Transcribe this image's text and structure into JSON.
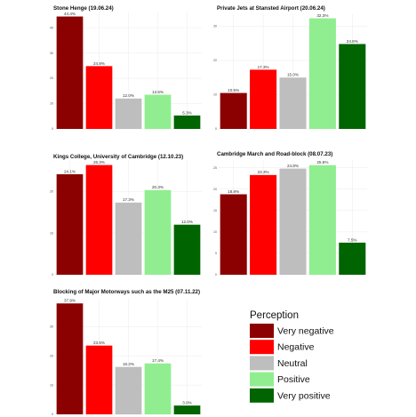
{
  "chart_data": [
    {
      "type": "bar",
      "title": "Stone Henge (19.06.24)",
      "categories": [
        "Very negative",
        "Negative",
        "Neutral",
        "Positive",
        "Very positive"
      ],
      "values": [
        44.4,
        24.8,
        12.0,
        13.5,
        5.3
      ],
      "labels": [
        "44.4%",
        "24.8%",
        "12.0%",
        "13.5%",
        "5.3%"
      ],
      "ylim": [
        0,
        46
      ],
      "yticks": [
        0,
        10,
        20,
        30,
        40
      ],
      "grid": true
    },
    {
      "type": "bar",
      "title": "Private Jets at Stansted Airport (20.06.24)",
      "categories": [
        "Very negative",
        "Negative",
        "Neutral",
        "Positive",
        "Very positive"
      ],
      "values": [
        10.5,
        17.3,
        15.0,
        32.3,
        24.8
      ],
      "labels": [
        "10.5%",
        "17.3%",
        "15.0%",
        "32.3%",
        "24.8%"
      ],
      "ylim": [
        0,
        33.5
      ],
      "yticks": [
        0,
        10,
        20,
        30
      ],
      "grid": true
    },
    {
      "type": "bar",
      "title": "Kings College, University of Cambridge (12.10.23)",
      "categories": [
        "Very negative",
        "Negative",
        "Neutral",
        "Positive",
        "Very positive"
      ],
      "values": [
        24.1,
        26.3,
        17.3,
        20.3,
        12.0
      ],
      "labels": [
        "24.1%",
        "26.3%",
        "17.3%",
        "20.3%",
        "12.0%"
      ],
      "ylim": [
        0,
        27.5
      ],
      "yticks": [
        0,
        10,
        20
      ],
      "grid": true
    },
    {
      "type": "bar",
      "title": "Cambridge March and Road-block (08.07.23)",
      "categories": [
        "Very negative",
        "Negative",
        "Neutral",
        "Positive",
        "Very positive"
      ],
      "values": [
        18.8,
        23.3,
        24.8,
        25.6,
        7.5
      ],
      "labels": [
        "18.8%",
        "23.3%",
        "24.8%",
        "25.6%",
        "7.5%"
      ],
      "ylim": [
        0,
        26.8
      ],
      "yticks": [
        0,
        5,
        10,
        15,
        20,
        25
      ],
      "grid": true
    },
    {
      "type": "bar",
      "title": "Blocking of Major Motorways such as the M25 (07.11.22)",
      "categories": [
        "Very negative",
        "Negative",
        "Neutral",
        "Positive",
        "Very positive"
      ],
      "values": [
        37.9,
        23.5,
        16.2,
        17.4,
        3.0
      ],
      "labels": [
        "37.9%",
        "23.5%",
        "16.2%",
        "17.4%",
        "3.0%"
      ],
      "ylim": [
        0,
        39.5
      ],
      "yticks": [
        0,
        10,
        20,
        30
      ],
      "grid": true
    }
  ],
  "legend": {
    "title": "Perception",
    "placement": "bottom-right",
    "items": [
      {
        "label": "Very negative",
        "color": "#8b0000"
      },
      {
        "label": "Negative",
        "color": "#ff0000"
      },
      {
        "label": "Neutral",
        "color": "#bebebe"
      },
      {
        "label": "Positive",
        "color": "#90ee90"
      },
      {
        "label": "Very positive",
        "color": "#006400"
      }
    ]
  }
}
